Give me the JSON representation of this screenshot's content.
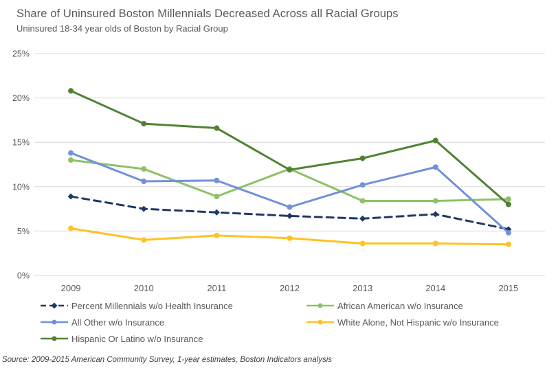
{
  "title": "Share of Uninsured Boston Millennials Decreased Across all Racial Groups",
  "subtitle": "Uninsured 18-34 year olds of Boston by Racial Group",
  "source": "Source: 2009-2015 American Community Survey, 1-year estimates, Boston Indicators analysis",
  "chart_data": {
    "type": "line",
    "title": "Share of Uninsured Boston Millennials Decreased Across all Racial Groups",
    "subtitle": "Uninsured 18-34 year olds of Boston by Racial Group",
    "x": [
      "2009",
      "2010",
      "2011",
      "2012",
      "2013",
      "2014",
      "2015"
    ],
    "xlabel": "",
    "ylabel": "",
    "ylim": [
      0,
      25
    ],
    "yticks": [
      0,
      5,
      10,
      15,
      20,
      25
    ],
    "ytick_suffix": "%",
    "grid": true,
    "grid_color": "#D9D9D9",
    "axis_label_color": "#595959",
    "legend_position": "bottom",
    "series": [
      {
        "id": "percent-millennials",
        "name": "Percent Millennials w/o Health Insurance",
        "color": "#1F3864",
        "dash": true,
        "marker": "diamond",
        "values": [
          8.9,
          7.5,
          7.1,
          6.7,
          6.4,
          6.9,
          5.2
        ]
      },
      {
        "id": "african-american",
        "name": "African American w/o Insurance",
        "color": "#8DC167",
        "dash": false,
        "marker": "circle",
        "values": [
          13.0,
          12.0,
          8.9,
          12.0,
          8.4,
          8.4,
          8.6
        ]
      },
      {
        "id": "all-other",
        "name": "All Other w/o Insurance",
        "color": "#7191D8",
        "dash": false,
        "marker": "circle",
        "values": [
          13.8,
          10.6,
          10.7,
          7.7,
          10.2,
          12.2,
          4.8
        ]
      },
      {
        "id": "white-alone",
        "name": "White Alone, Not Hispanic w/o Insurance",
        "color": "#FFC224",
        "dash": false,
        "marker": "circle",
        "values": [
          5.3,
          4.0,
          4.5,
          4.2,
          3.6,
          3.6,
          3.5
        ]
      },
      {
        "id": "hispanic-latino",
        "name": "Hispanic Or Latino w/o Insurance",
        "color": "#4F8232",
        "dash": false,
        "marker": "circle",
        "values": [
          20.8,
          17.1,
          16.6,
          11.9,
          13.2,
          15.2,
          8.0
        ]
      }
    ]
  }
}
